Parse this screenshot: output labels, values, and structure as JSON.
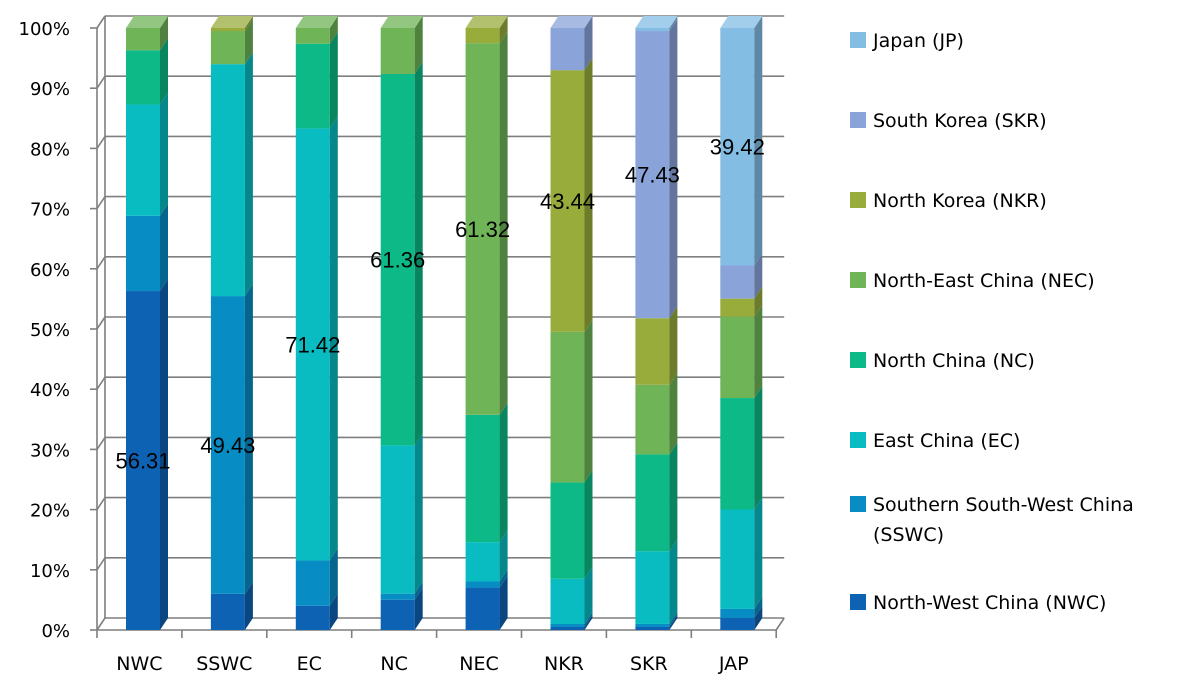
{
  "chart_data": {
    "type": "bar",
    "stacked": true,
    "percent": true,
    "three_d": true,
    "categories": [
      "NWC",
      "SSWC",
      "EC",
      "NC",
      "NEC",
      "NKR",
      "SKR",
      "JAP"
    ],
    "y_ticks": [
      "0%",
      "10%",
      "20%",
      "30%",
      "40%",
      "50%",
      "60%",
      "70%",
      "80%",
      "90%",
      "100%"
    ],
    "ylim": [
      0,
      100
    ],
    "grid": true,
    "legend_position": "right",
    "series": [
      {
        "name": "North-West China (NWC)",
        "color": "#0e62b3",
        "values": [
          56.31,
          6.0,
          4.0,
          5.0,
          7.0,
          0.5,
          0.5,
          2.0
        ]
      },
      {
        "name": "Southern South-West China (SSWC)",
        "color": "#078cc4",
        "values": [
          12.5,
          49.43,
          7.5,
          1.0,
          1.0,
          0.5,
          0.5,
          1.5
        ]
      },
      {
        "name": "East China (EC)",
        "color": "#09bcc2",
        "values": [
          18.5,
          38.5,
          71.42,
          24.5,
          6.5,
          7.5,
          12.0,
          16.5
        ]
      },
      {
        "name": "North China (NC)",
        "color": "#0db986",
        "values": [
          9.0,
          0.0,
          14.0,
          61.36,
          21.0,
          16.0,
          16.0,
          18.5
        ]
      },
      {
        "name": "North-East China (NEC)",
        "color": "#6fb457",
        "values": [
          3.7,
          5.5,
          2.6,
          7.6,
          61.32,
          25.0,
          11.5,
          13.5
        ]
      },
      {
        "name": "North Korea (NKR)",
        "color": "#98ac3c",
        "values": [
          0.0,
          0.5,
          0.0,
          0.0,
          2.5,
          43.44,
          11.0,
          3.0
        ]
      },
      {
        "name": "South Korea (SKR)",
        "color": "#8aa3d8",
        "values": [
          0.0,
          0.0,
          0.0,
          0.0,
          0.0,
          7.0,
          47.43,
          5.5
        ]
      },
      {
        "name": "Japan (JP)",
        "color": "#84bde4",
        "values": [
          0.0,
          0.0,
          0.0,
          0.0,
          0.0,
          0.0,
          0.5,
          39.42
        ]
      }
    ],
    "data_labels": [
      {
        "category": "NWC",
        "series": 0,
        "text": "56.31"
      },
      {
        "category": "SSWC",
        "series": 1,
        "text": "49.43"
      },
      {
        "category": "EC",
        "series": 2,
        "text": "71.42"
      },
      {
        "category": "NC",
        "series": 3,
        "text": "61.36"
      },
      {
        "category": "NEC",
        "series": 4,
        "text": "61.32"
      },
      {
        "category": "NKR",
        "series": 5,
        "text": "43.44"
      },
      {
        "category": "SKR",
        "series": 6,
        "text": "47.43"
      },
      {
        "category": "JAP",
        "series": 7,
        "text": "39.42"
      }
    ],
    "legend_order": [
      "Japan (JP)",
      "South Korea (SKR)",
      "North Korea (NKR)",
      "North-East China (NEC)",
      "North China (NC)",
      "East China (EC)",
      "Southern South-West China (SSWC)",
      "North-West China (NWC)"
    ]
  }
}
